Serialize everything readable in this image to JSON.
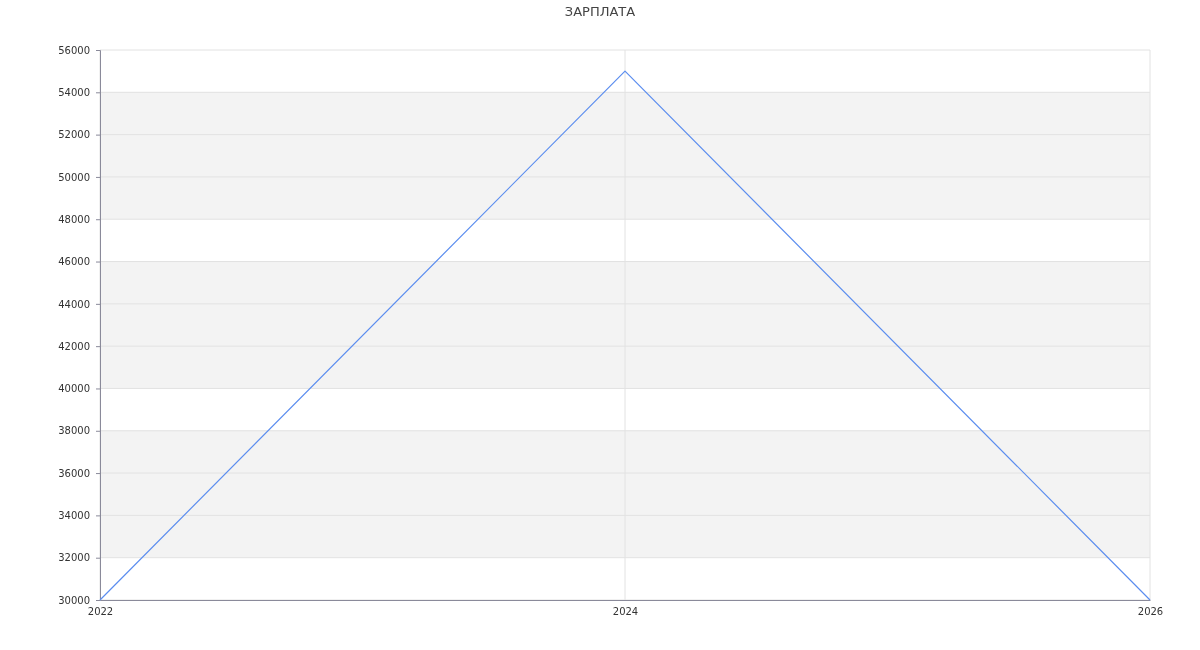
{
  "chart_data": {
    "type": "line",
    "title": "ЗАРПЛАТА",
    "x": [
      2022,
      2024,
      2026
    ],
    "series": [
      {
        "color": "#5b8def",
        "values": [
          30000,
          55000,
          30000
        ]
      }
    ],
    "xlim": [
      2022,
      2026
    ],
    "xticks": [
      2022,
      2024,
      2026
    ],
    "ylim": [
      30000,
      56000
    ],
    "yticks": [
      30000,
      32000,
      34000,
      36000,
      38000,
      40000,
      42000,
      44000,
      46000,
      48000,
      50000,
      52000,
      54000,
      56000
    ],
    "grid": true,
    "marker": "none",
    "line_style": "solid"
  }
}
